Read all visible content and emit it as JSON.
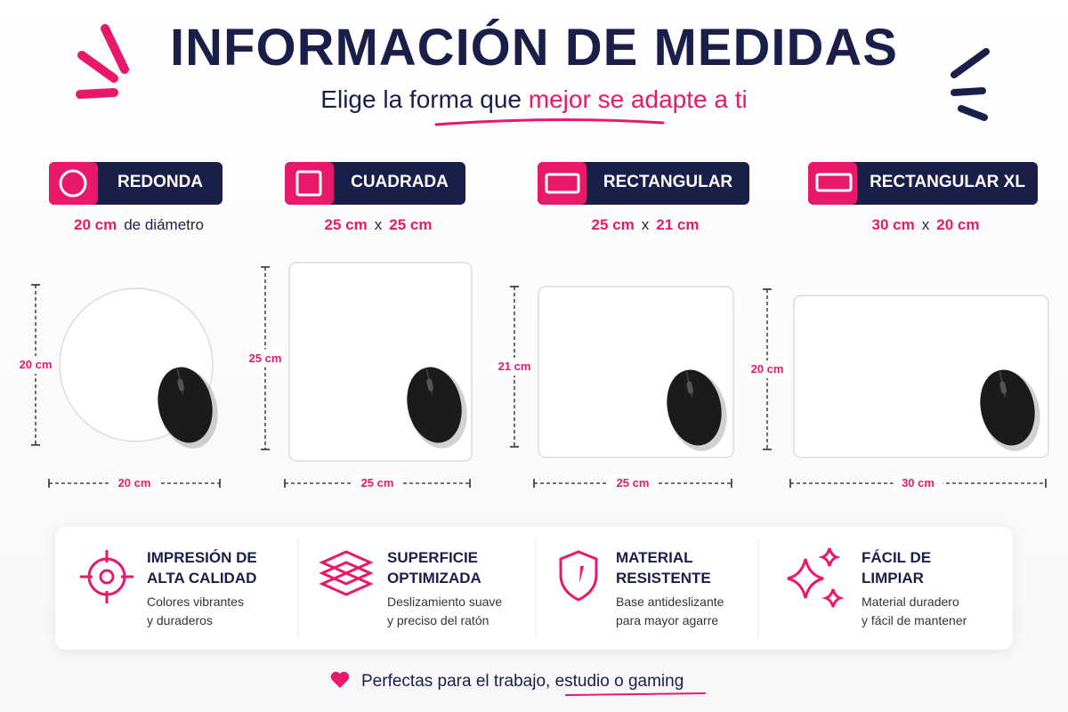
{
  "header": {
    "title": "INFORMACIÓN DE MEDIDAS",
    "subtitle": "Elige la forma que",
    "subtitle_highlight": "mejor se adapte a ti"
  },
  "shapes": [
    {
      "name": "REDONDA",
      "size": [
        "20 cm",
        "de diámetro"
      ],
      "height": "20 cm",
      "width": "20 cm"
    },
    {
      "name": "CUADRADA",
      "size": [
        "25 cm",
        "x",
        "25 cm"
      ],
      "height": "25 cm",
      "width": "25 cm"
    },
    {
      "name": "RECTANGULAR",
      "size": [
        "25 cm",
        "x",
        "21 cm"
      ],
      "height": "21 cm",
      "width": "25 cm"
    },
    {
      "name": "RECTANGULAR XL",
      "size": [
        "30 cm",
        "x",
        "20 cm"
      ],
      "height": "20 cm",
      "width": "30 cm"
    }
  ],
  "features": [
    {
      "title": [
        "IMPRESIÓN DE",
        "ALTA CALIDAD"
      ],
      "text": [
        "Colores vibrantes",
        "y duraderos"
      ]
    },
    {
      "title": [
        "SUPERFICIE",
        "OPTIMIZADA"
      ],
      "text": [
        "Deslizamiento suave",
        "y preciso del ratón"
      ]
    },
    {
      "title": [
        "MATERIAL",
        "RESISTENTE"
      ],
      "text": [
        "Base antideslizante",
        "para mayor agarre"
      ]
    },
    {
      "title": [
        "FÁCIL DE",
        "LIMPIAR"
      ],
      "text": [
        "Material duradero",
        "y fácil de mantener"
      ]
    }
  ],
  "footer": {
    "text": "Perfectas para el trabajo, estudio o gaming"
  }
}
